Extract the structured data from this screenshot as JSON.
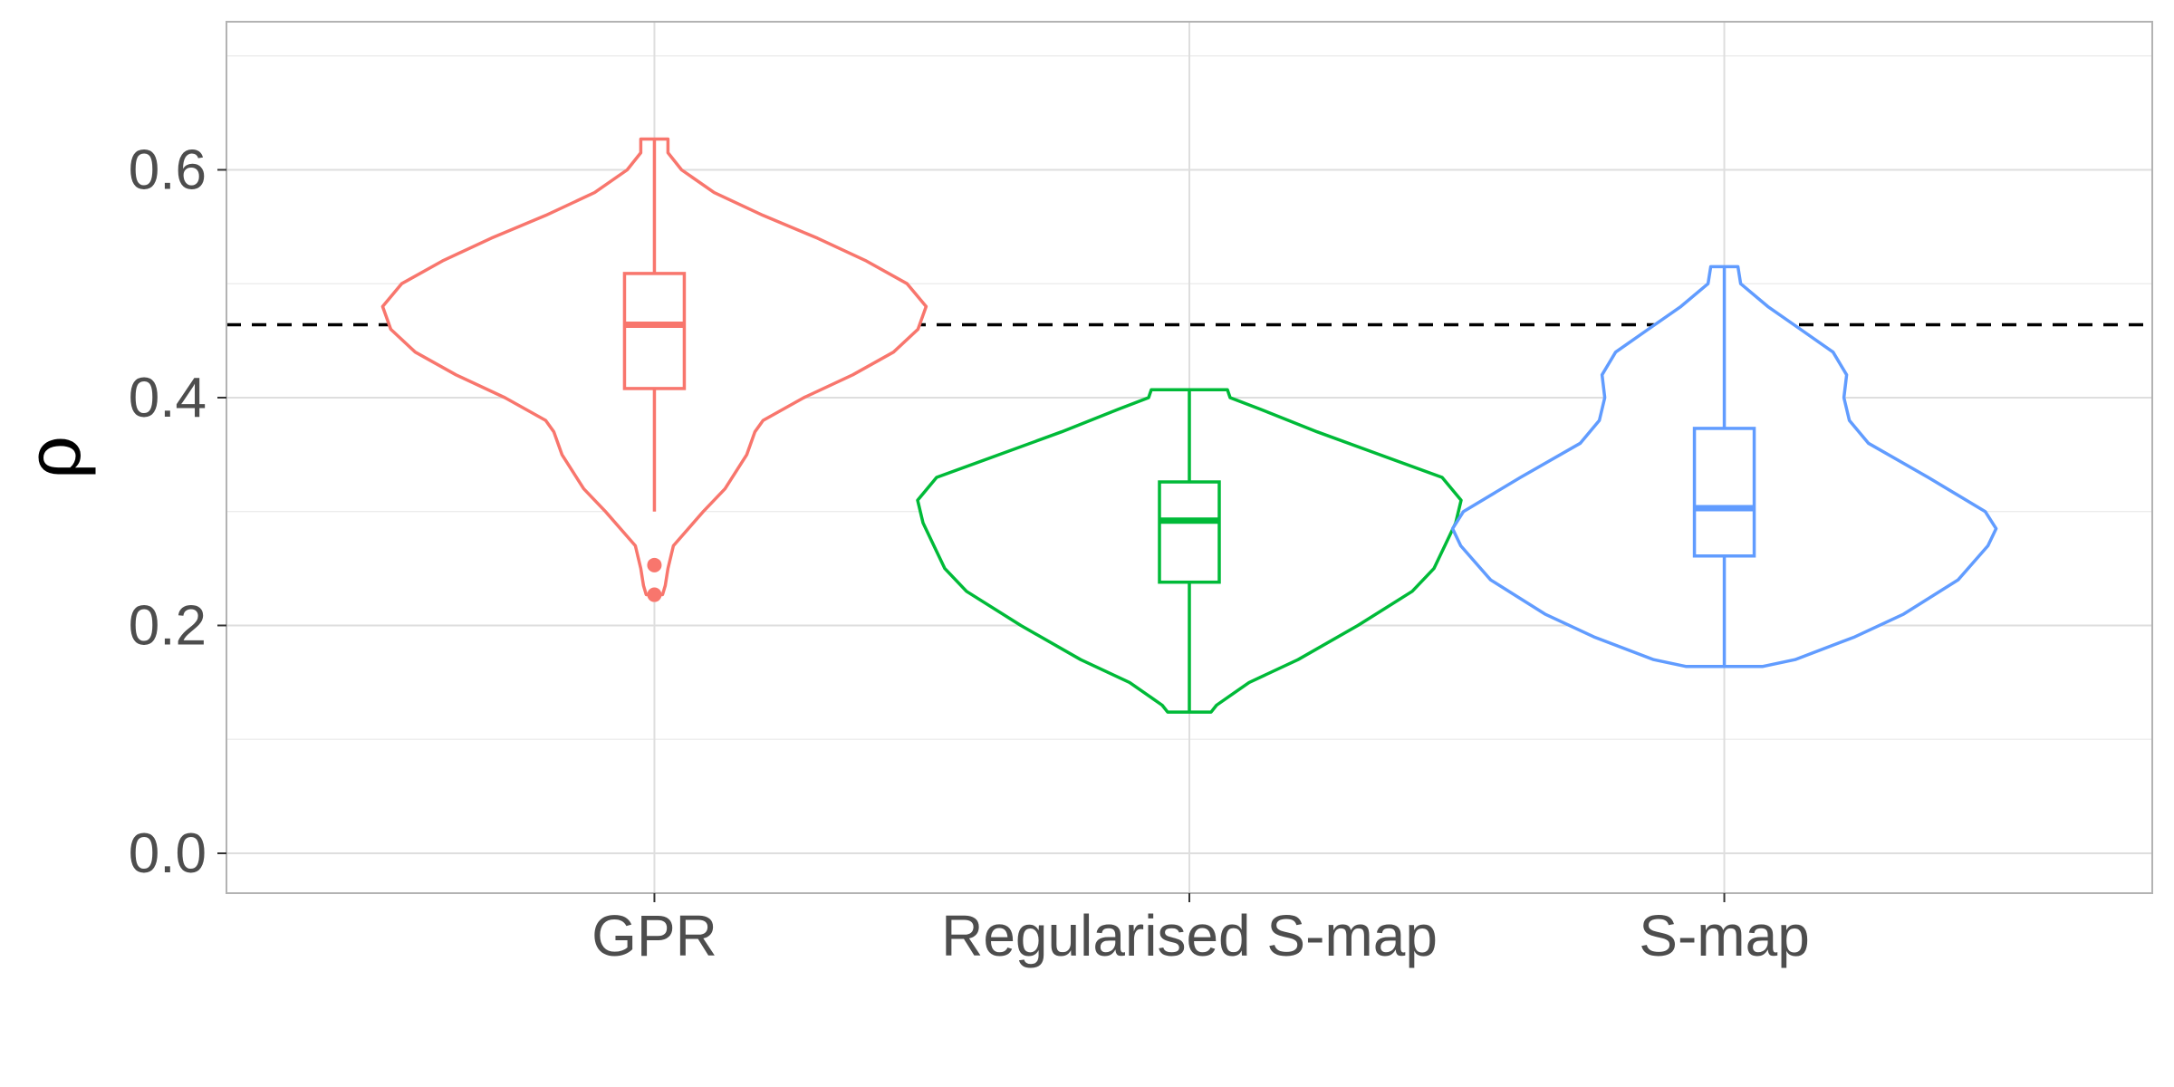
{
  "chart_data": {
    "type": "violin",
    "categories": [
      "GPR",
      "Regularised S-map",
      "S-map"
    ],
    "xlabel": "",
    "ylabel": "ρ",
    "ylim": [
      -0.035,
      0.73
    ],
    "yticks": [
      0.0,
      0.2,
      0.4,
      0.6
    ],
    "ytick_labels": [
      "0.0",
      "0.2",
      "0.4",
      "0.6"
    ],
    "grid": true,
    "reference_line": {
      "y": 0.464,
      "style": "dashed",
      "color": "#000000"
    },
    "series": [
      {
        "category": "GPR",
        "color": "#F8766D",
        "box": {
          "min": 0.3,
          "q1": 0.408,
          "median": 0.464,
          "q3": 0.509,
          "max": 0.627
        },
        "outliers": [
          0.253,
          0.227
        ],
        "violin_range": [
          0.227,
          0.627
        ],
        "density": [
          [
            0.227,
            0.03
          ],
          [
            0.235,
            0.04
          ],
          [
            0.25,
            0.05
          ],
          [
            0.27,
            0.07
          ],
          [
            0.3,
            0.18
          ],
          [
            0.32,
            0.26
          ],
          [
            0.35,
            0.34
          ],
          [
            0.37,
            0.37
          ],
          [
            0.38,
            0.4
          ],
          [
            0.4,
            0.55
          ],
          [
            0.42,
            0.73
          ],
          [
            0.44,
            0.88
          ],
          [
            0.46,
            0.97
          ],
          [
            0.48,
            1.0
          ],
          [
            0.5,
            0.93
          ],
          [
            0.52,
            0.78
          ],
          [
            0.54,
            0.6
          ],
          [
            0.56,
            0.4
          ],
          [
            0.58,
            0.22
          ],
          [
            0.6,
            0.1
          ],
          [
            0.615,
            0.05
          ],
          [
            0.627,
            0.05
          ]
        ]
      },
      {
        "category": "Regularised S-map",
        "color": "#00BA38",
        "box": {
          "min": 0.124,
          "q1": 0.238,
          "median": 0.292,
          "q3": 0.326,
          "max": 0.407
        },
        "outliers": [],
        "violin_range": [
          0.124,
          0.407
        ],
        "density": [
          [
            0.124,
            0.08
          ],
          [
            0.13,
            0.1
          ],
          [
            0.15,
            0.22
          ],
          [
            0.17,
            0.4
          ],
          [
            0.2,
            0.62
          ],
          [
            0.23,
            0.82
          ],
          [
            0.25,
            0.9
          ],
          [
            0.27,
            0.94
          ],
          [
            0.29,
            0.98
          ],
          [
            0.31,
            1.0
          ],
          [
            0.33,
            0.93
          ],
          [
            0.35,
            0.7
          ],
          [
            0.37,
            0.47
          ],
          [
            0.39,
            0.26
          ],
          [
            0.4,
            0.15
          ],
          [
            0.407,
            0.14
          ]
        ]
      },
      {
        "category": "S-map",
        "color": "#619CFF",
        "box": {
          "min": 0.164,
          "q1": 0.261,
          "median": 0.303,
          "q3": 0.373,
          "max": 0.515
        },
        "outliers": [],
        "violin_range": [
          0.164,
          0.515
        ],
        "density": [
          [
            0.164,
            0.14
          ],
          [
            0.17,
            0.26
          ],
          [
            0.19,
            0.48
          ],
          [
            0.21,
            0.66
          ],
          [
            0.24,
            0.86
          ],
          [
            0.27,
            0.97
          ],
          [
            0.285,
            1.0
          ],
          [
            0.3,
            0.96
          ],
          [
            0.33,
            0.75
          ],
          [
            0.36,
            0.53
          ],
          [
            0.38,
            0.46
          ],
          [
            0.4,
            0.44
          ],
          [
            0.42,
            0.45
          ],
          [
            0.44,
            0.4
          ],
          [
            0.46,
            0.28
          ],
          [
            0.48,
            0.16
          ],
          [
            0.5,
            0.06
          ],
          [
            0.515,
            0.05
          ]
        ]
      }
    ]
  }
}
